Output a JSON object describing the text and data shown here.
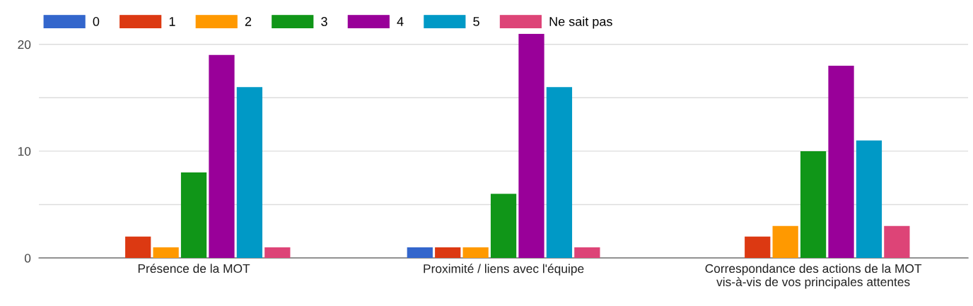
{
  "chart_data": {
    "type": "bar",
    "categories": [
      "Présence de la MOT",
      "Proximité / liens avec l'équipe",
      "Correspondance des actions de la MOT\nvis-à-vis de vos principales attentes"
    ],
    "series": [
      {
        "name": "0",
        "color": "#3366cc",
        "values": [
          0,
          1,
          0
        ]
      },
      {
        "name": "1",
        "color": "#dc3912",
        "values": [
          2,
          1,
          2
        ]
      },
      {
        "name": "2",
        "color": "#ff9900",
        "values": [
          1,
          1,
          3
        ]
      },
      {
        "name": "3",
        "color": "#109618",
        "values": [
          8,
          6,
          10
        ]
      },
      {
        "name": "4",
        "color": "#990099",
        "values": [
          19,
          21,
          18
        ]
      },
      {
        "name": "5",
        "color": "#0099c6",
        "values": [
          16,
          16,
          11
        ]
      },
      {
        "name": "Ne sait pas",
        "color": "#dd4477",
        "values": [
          1,
          1,
          3
        ]
      }
    ],
    "ylim": [
      0,
      21
    ],
    "yticks": [
      0,
      {
        "value": 5,
        "label": null
      },
      10,
      {
        "value": 15,
        "label": null
      },
      20
    ],
    "grid": "y",
    "legend": "top left"
  }
}
